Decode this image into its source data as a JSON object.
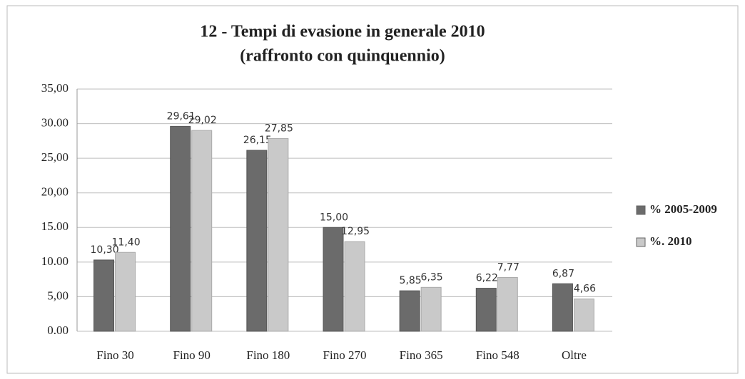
{
  "chart_data": {
    "type": "bar",
    "title": "12 - Tempi di evasione in generale 2010",
    "subtitle": "(raffronto con quinquennio)",
    "categories": [
      "Fino 30",
      "Fino 90",
      "Fino 180",
      "Fino 270",
      "Fino 365",
      "Fino 548",
      "Oltre"
    ],
    "series": [
      {
        "name": "% 2005-2009",
        "color": "#6b6b6b",
        "values": [
          10.3,
          29.61,
          26.15,
          15.0,
          5.85,
          6.22,
          6.87
        ],
        "value_labels": [
          "10,30",
          "29,61",
          "26,15",
          "15,00",
          "5,85",
          "6,22",
          "6,87"
        ]
      },
      {
        "name": "%. 2010",
        "color": "#c9c9c9",
        "values": [
          11.4,
          29.02,
          27.85,
          12.95,
          6.35,
          7.77,
          4.66
        ],
        "value_labels": [
          "11,40",
          "29,02",
          "27,85",
          "12,95",
          "6,35",
          "7,77",
          "4,66"
        ]
      }
    ],
    "ylim": [
      0,
      35
    ],
    "yticks": [
      {
        "value": 0,
        "label": "0.00"
      },
      {
        "value": 5,
        "label": "5,00"
      },
      {
        "value": 10,
        "label": "10.00"
      },
      {
        "value": 15,
        "label": "15.00"
      },
      {
        "value": 20,
        "label": "20,00"
      },
      {
        "value": 25,
        "label": "25,00"
      },
      {
        "value": 30,
        "label": "30.00"
      },
      {
        "value": 35,
        "label": "35,00"
      }
    ],
    "grid": true,
    "legend": "right"
  }
}
